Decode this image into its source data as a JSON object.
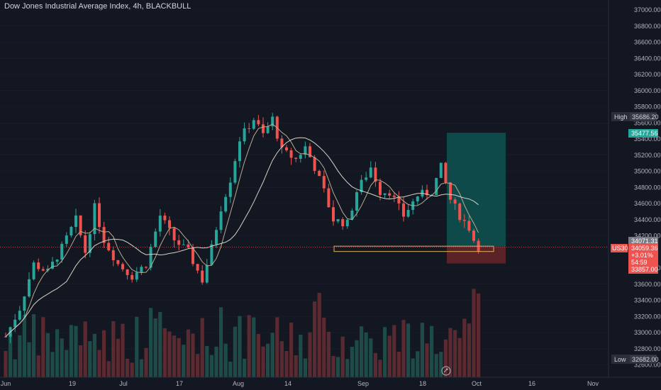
{
  "header": {
    "title": "Dow Jones Industrial Average Index, 4h, BLACKBULL"
  },
  "colors": {
    "background": "#131722",
    "up": "#26a69a",
    "down": "#ef5350",
    "ma_fast": "#b9aa8c",
    "ma_slow": "#d6d2c4",
    "text": "#b2b5be"
  },
  "chart_data": {
    "type": "candlestick",
    "title": "Dow Jones Industrial Average Index, 4h, BLACKBULL",
    "y_range": [
      32550,
      37100
    ],
    "y_ticks": [
      "37000.00",
      "36800.00",
      "36600.00",
      "36400.00",
      "36200.00",
      "36000.00",
      "35800.00",
      "35600.00",
      "35400.00",
      "35200.00",
      "35000.00",
      "34800.00",
      "34600.00",
      "34400.00",
      "34200.00",
      "33800.00",
      "33600.00",
      "33400.00",
      "33200.00",
      "33000.00",
      "32800.00",
      "32600.00"
    ],
    "x_ticks": [
      "Jun",
      "19",
      "Jul",
      "17",
      "Aug",
      "14",
      "Sep",
      "18",
      "Oct",
      "16",
      "Nov"
    ],
    "price_path": [
      [
        0,
        32950
      ],
      [
        3,
        33300
      ],
      [
        6,
        33850
      ],
      [
        9,
        33750
      ],
      [
        12,
        34050
      ],
      [
        15,
        34400
      ],
      [
        17,
        34000
      ],
      [
        19,
        34550
      ],
      [
        21,
        34150
      ],
      [
        24,
        33850
      ],
      [
        27,
        33700
      ],
      [
        30,
        33850
      ],
      [
        33,
        34450
      ],
      [
        36,
        34150
      ],
      [
        39,
        34000
      ],
      [
        42,
        33650
      ],
      [
        44,
        34050
      ],
      [
        46,
        34550
      ],
      [
        48,
        34900
      ],
      [
        50,
        35400
      ],
      [
        53,
        35650
      ],
      [
        55,
        35450
      ],
      [
        57,
        35650
      ],
      [
        59,
        35250
      ],
      [
        62,
        35150
      ],
      [
        64,
        35300
      ],
      [
        66,
        35050
      ],
      [
        68,
        34750
      ],
      [
        70,
        34400
      ],
      [
        73,
        34350
      ],
      [
        75,
        34750
      ],
      [
        78,
        35050
      ],
      [
        80,
        34750
      ],
      [
        82,
        34750
      ],
      [
        85,
        34450
      ],
      [
        88,
        34700
      ],
      [
        91,
        34750
      ],
      [
        93,
        35050
      ],
      [
        95,
        34650
      ],
      [
        97,
        34450
      ],
      [
        99,
        34300
      ],
      [
        100,
        34150
      ],
      [
        101,
        34059.36
      ]
    ],
    "levels": {
      "high": "35686.20",
      "low": "32682.00",
      "take_profit": "35477.56",
      "entry_reference": "34071.31",
      "current_price": "34059.36",
      "change_pct": "+3.01%",
      "countdown": "54:59",
      "stop_loss": "33857.00"
    },
    "labels": {
      "high": "High",
      "low": "Low",
      "symbol": "US30"
    },
    "position": {
      "entry": 34071.31,
      "take_profit": 35477.56,
      "stop_loss": 33857.0
    },
    "support_zone": [
      34005,
      34071
    ]
  }
}
